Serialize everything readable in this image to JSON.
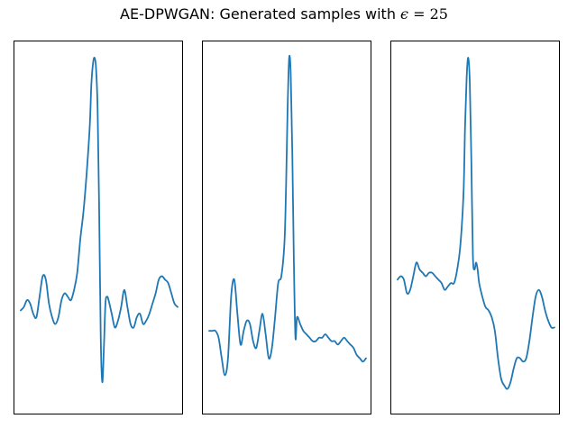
{
  "figure": {
    "title_prefix": "AE-DPWGAN: Generated samples with ",
    "epsilon_symbol": "ϵ",
    "epsilon_expr": " = 25"
  },
  "chart_data": [
    {
      "type": "line",
      "title": "",
      "xlabel": "",
      "ylabel": "",
      "xlim": [
        0,
        1
      ],
      "ylim": [
        0,
        1
      ],
      "grid": false,
      "ticks": false,
      "series": [
        {
          "color": "#1f77b4",
          "x": [
            0.0,
            0.02,
            0.04,
            0.06,
            0.08,
            0.1,
            0.12,
            0.14,
            0.16,
            0.18,
            0.2,
            0.22,
            0.24,
            0.26,
            0.28,
            0.3,
            0.32,
            0.34,
            0.36,
            0.38,
            0.4,
            0.42,
            0.44,
            0.45,
            0.46,
            0.47,
            0.48,
            0.49,
            0.5,
            0.51,
            0.52,
            0.53,
            0.54,
            0.55,
            0.56,
            0.58,
            0.6,
            0.62,
            0.64,
            0.66,
            0.68,
            0.7,
            0.72,
            0.74,
            0.76,
            0.78,
            0.8,
            0.82,
            0.84,
            0.86,
            0.88,
            0.9,
            0.92,
            0.94,
            0.96,
            0.98,
            1.0
          ],
          "y": [
            0.26,
            0.27,
            0.29,
            0.28,
            0.25,
            0.24,
            0.3,
            0.36,
            0.35,
            0.28,
            0.24,
            0.22,
            0.24,
            0.29,
            0.31,
            0.3,
            0.29,
            0.32,
            0.37,
            0.47,
            0.55,
            0.66,
            0.8,
            0.92,
            0.98,
            1.0,
            0.97,
            0.85,
            0.55,
            0.18,
            0.05,
            0.15,
            0.28,
            0.3,
            0.29,
            0.25,
            0.21,
            0.23,
            0.27,
            0.32,
            0.27,
            0.22,
            0.21,
            0.24,
            0.25,
            0.22,
            0.23,
            0.25,
            0.28,
            0.31,
            0.35,
            0.36,
            0.35,
            0.34,
            0.31,
            0.28,
            0.27
          ]
        }
      ]
    },
    {
      "type": "line",
      "title": "",
      "xlabel": "",
      "ylabel": "",
      "xlim": [
        0,
        1
      ],
      "ylim": [
        0,
        1
      ],
      "grid": false,
      "ticks": false,
      "series": [
        {
          "color": "#1f77b4",
          "x": [
            0.0,
            0.02,
            0.04,
            0.06,
            0.08,
            0.1,
            0.12,
            0.14,
            0.16,
            0.18,
            0.2,
            0.22,
            0.24,
            0.26,
            0.28,
            0.3,
            0.32,
            0.34,
            0.36,
            0.38,
            0.4,
            0.42,
            0.44,
            0.46,
            0.48,
            0.49,
            0.5,
            0.51,
            0.52,
            0.53,
            0.54,
            0.55,
            0.56,
            0.58,
            0.6,
            0.62,
            0.64,
            0.66,
            0.68,
            0.7,
            0.72,
            0.74,
            0.76,
            0.78,
            0.8,
            0.82,
            0.84,
            0.86,
            0.88,
            0.9,
            0.92,
            0.94,
            0.96,
            0.98,
            1.0
          ],
          "y": [
            0.2,
            0.2,
            0.2,
            0.18,
            0.12,
            0.07,
            0.12,
            0.3,
            0.35,
            0.25,
            0.16,
            0.2,
            0.23,
            0.22,
            0.17,
            0.15,
            0.2,
            0.25,
            0.19,
            0.12,
            0.15,
            0.24,
            0.34,
            0.36,
            0.46,
            0.62,
            0.85,
            1.0,
            0.95,
            0.72,
            0.4,
            0.18,
            0.24,
            0.22,
            0.2,
            0.19,
            0.18,
            0.17,
            0.17,
            0.18,
            0.18,
            0.19,
            0.18,
            0.17,
            0.17,
            0.16,
            0.17,
            0.18,
            0.17,
            0.16,
            0.15,
            0.13,
            0.12,
            0.11,
            0.12
          ]
        }
      ]
    },
    {
      "type": "line",
      "title": "",
      "xlabel": "",
      "ylabel": "",
      "xlim": [
        0,
        1
      ],
      "ylim": [
        0,
        1
      ],
      "grid": false,
      "ticks": false,
      "series": [
        {
          "color": "#1f77b4",
          "x": [
            0.0,
            0.02,
            0.04,
            0.06,
            0.08,
            0.1,
            0.12,
            0.14,
            0.16,
            0.18,
            0.2,
            0.22,
            0.24,
            0.26,
            0.28,
            0.3,
            0.32,
            0.34,
            0.36,
            0.38,
            0.4,
            0.42,
            0.43,
            0.44,
            0.45,
            0.46,
            0.47,
            0.48,
            0.49,
            0.5,
            0.51,
            0.52,
            0.54,
            0.56,
            0.58,
            0.6,
            0.62,
            0.64,
            0.66,
            0.68,
            0.7,
            0.72,
            0.74,
            0.76,
            0.78,
            0.8,
            0.82,
            0.84,
            0.86,
            0.88,
            0.9,
            0.92,
            0.94,
            0.96,
            0.98,
            1.0
          ],
          "y": [
            0.35,
            0.36,
            0.35,
            0.31,
            0.32,
            0.36,
            0.4,
            0.38,
            0.37,
            0.36,
            0.37,
            0.37,
            0.36,
            0.35,
            0.34,
            0.32,
            0.33,
            0.34,
            0.34,
            0.38,
            0.45,
            0.6,
            0.8,
            0.94,
            1.0,
            0.93,
            0.7,
            0.42,
            0.38,
            0.4,
            0.38,
            0.34,
            0.3,
            0.27,
            0.26,
            0.24,
            0.2,
            0.12,
            0.06,
            0.04,
            0.03,
            0.05,
            0.09,
            0.12,
            0.12,
            0.11,
            0.12,
            0.17,
            0.24,
            0.3,
            0.32,
            0.3,
            0.26,
            0.23,
            0.21,
            0.21
          ]
        }
      ]
    }
  ]
}
